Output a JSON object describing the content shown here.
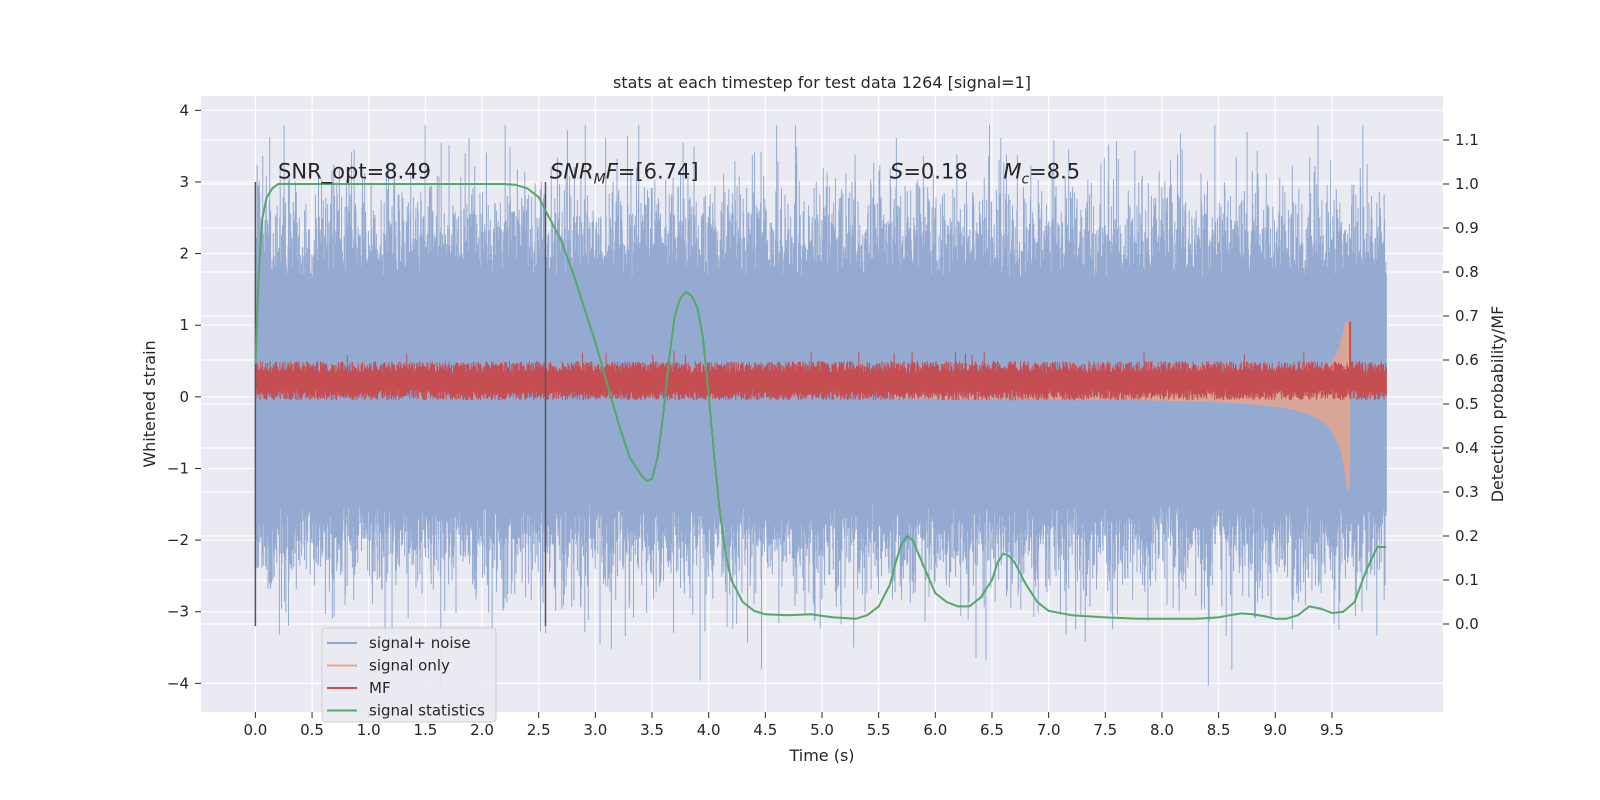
{
  "chart_data": {
    "type": "line",
    "title": "stats at each timestep for test data 1264 [signal=1]",
    "xlabel": "Time (s)",
    "ylabel_left": "Whitened strain",
    "ylabel_right": "Detection probability/MF",
    "xlim": [
      -0.48,
      10.48
    ],
    "ylim_left": [
      -4.4,
      4.2
    ],
    "ylim_right": [
      -0.2,
      1.2
    ],
    "x_ticks": [
      0.0,
      0.5,
      1.0,
      1.5,
      2.0,
      2.5,
      3.0,
      3.5,
      4.0,
      4.5,
      5.0,
      5.5,
      6.0,
      6.5,
      7.0,
      7.5,
      8.0,
      8.5,
      9.0,
      9.5
    ],
    "x_tick_labels": [
      "0.0",
      "0.5",
      "1.0",
      "1.5",
      "2.0",
      "2.5",
      "3.0",
      "3.5",
      "4.0",
      "4.5",
      "5.0",
      "5.5",
      "6.0",
      "6.5",
      "7.0",
      "7.5",
      "8.0",
      "8.5",
      "9.0",
      "9.5"
    ],
    "y_left_ticks": [
      4,
      3,
      2,
      1,
      0,
      -1,
      -2,
      -3,
      -4
    ],
    "y_left_tick_labels": [
      "4",
      "3",
      "2",
      "1",
      "0",
      "−1",
      "−2",
      "−3",
      "−4"
    ],
    "y_right_ticks": [
      1.1,
      1.0,
      0.9,
      0.8,
      0.7,
      0.6,
      0.5,
      0.4,
      0.3,
      0.2,
      0.1,
      0.0
    ],
    "y_right_tick_labels": [
      "1.1",
      "1.0",
      "0.9",
      "0.8",
      "0.7",
      "0.6",
      "0.5",
      "0.4",
      "0.3",
      "0.2",
      "0.1",
      "0.0"
    ],
    "grid": true,
    "legend_position": "lower-left",
    "series": [
      {
        "name": "signal+ noise",
        "color": "#8fa6cf",
        "axis": "left",
        "kind": "noise",
        "x_range": [
          0.0,
          9.98
        ],
        "typical_envelope": [
          -2.0,
          2.2
        ],
        "peak_extent": [
          -4.1,
          3.8
        ]
      },
      {
        "name": "signal only",
        "color": "#e8a58a",
        "axis": "left",
        "kind": "chirp",
        "merger_time": 9.65,
        "peak_extent": [
          -1.3,
          1.05
        ]
      },
      {
        "name": "MF",
        "color": "#c44e52",
        "axis": "left",
        "kind": "band",
        "band": [
          -0.05,
          0.5
        ],
        "spike": {
          "x": 9.66,
          "y": 1.05
        }
      },
      {
        "name": "signal statistics",
        "color": "#55a868",
        "axis": "right",
        "kind": "curve",
        "x": [
          0.0,
          0.03,
          0.06,
          0.1,
          0.15,
          0.2,
          0.3,
          0.5,
          1.0,
          1.5,
          2.0,
          2.2,
          2.3,
          2.4,
          2.5,
          2.6,
          2.7,
          2.8,
          2.9,
          3.0,
          3.1,
          3.2,
          3.3,
          3.4,
          3.45,
          3.5,
          3.55,
          3.6,
          3.65,
          3.7,
          3.75,
          3.8,
          3.85,
          3.9,
          3.95,
          4.0,
          4.05,
          4.1,
          4.15,
          4.2,
          4.3,
          4.4,
          4.5,
          4.7,
          4.9,
          5.1,
          5.3,
          5.4,
          5.5,
          5.6,
          5.65,
          5.7,
          5.75,
          5.8,
          5.9,
          6.0,
          6.1,
          6.2,
          6.3,
          6.4,
          6.5,
          6.55,
          6.6,
          6.65,
          6.7,
          6.8,
          6.9,
          7.0,
          7.2,
          7.5,
          7.8,
          8.0,
          8.3,
          8.5,
          8.6,
          8.7,
          8.8,
          8.9,
          9.0,
          9.1,
          9.2,
          9.3,
          9.4,
          9.5,
          9.6,
          9.7,
          9.8,
          9.9,
          9.98
        ],
        "y": [
          0.59,
          0.8,
          0.92,
          0.97,
          0.99,
          1.0,
          1.0,
          1.0,
          1.0,
          1.0,
          1.0,
          1.0,
          0.998,
          0.99,
          0.97,
          0.92,
          0.87,
          0.8,
          0.72,
          0.64,
          0.55,
          0.46,
          0.38,
          0.34,
          0.325,
          0.33,
          0.38,
          0.48,
          0.6,
          0.7,
          0.74,
          0.755,
          0.745,
          0.72,
          0.65,
          0.52,
          0.38,
          0.25,
          0.16,
          0.1,
          0.05,
          0.03,
          0.022,
          0.02,
          0.022,
          0.015,
          0.012,
          0.02,
          0.04,
          0.09,
          0.14,
          0.18,
          0.2,
          0.19,
          0.13,
          0.07,
          0.05,
          0.04,
          0.04,
          0.06,
          0.1,
          0.14,
          0.16,
          0.155,
          0.14,
          0.09,
          0.05,
          0.03,
          0.02,
          0.015,
          0.012,
          0.012,
          0.012,
          0.015,
          0.02,
          0.024,
          0.022,
          0.018,
          0.012,
          0.012,
          0.02,
          0.04,
          0.035,
          0.025,
          0.028,
          0.05,
          0.12,
          0.175,
          0.175
        ]
      }
    ],
    "vertical_lines": [
      {
        "x": 0.0,
        "axis": "left",
        "y_range": [
          -3.2,
          3.0
        ]
      },
      {
        "x": 2.56,
        "axis": "left",
        "y_range": [
          -3.2,
          3.0
        ]
      }
    ],
    "annotations": [
      {
        "parts": [
          {
            "t": "SNR_opt=8.49",
            "style": "normal"
          }
        ],
        "x": 0.2,
        "y": 3.05
      },
      {
        "parts": [
          {
            "t": "SNR",
            "style": "italic"
          },
          {
            "t": "M",
            "style": "italic-sub"
          },
          {
            "t": "F",
            "style": "italic"
          },
          {
            "t": "=[6.74]",
            "style": "normal"
          }
        ],
        "x": 2.6,
        "y": 3.05
      },
      {
        "parts": [
          {
            "t": "S",
            "style": "italic"
          },
          {
            "t": "=0.18",
            "style": "normal"
          }
        ],
        "x": 5.6,
        "y": 3.05
      },
      {
        "parts": [
          {
            "t": "M",
            "style": "italic"
          },
          {
            "t": "c",
            "style": "italic-sub"
          },
          {
            "t": "=8.5",
            "style": "normal"
          }
        ],
        "x": 6.6,
        "y": 3.05
      }
    ]
  }
}
